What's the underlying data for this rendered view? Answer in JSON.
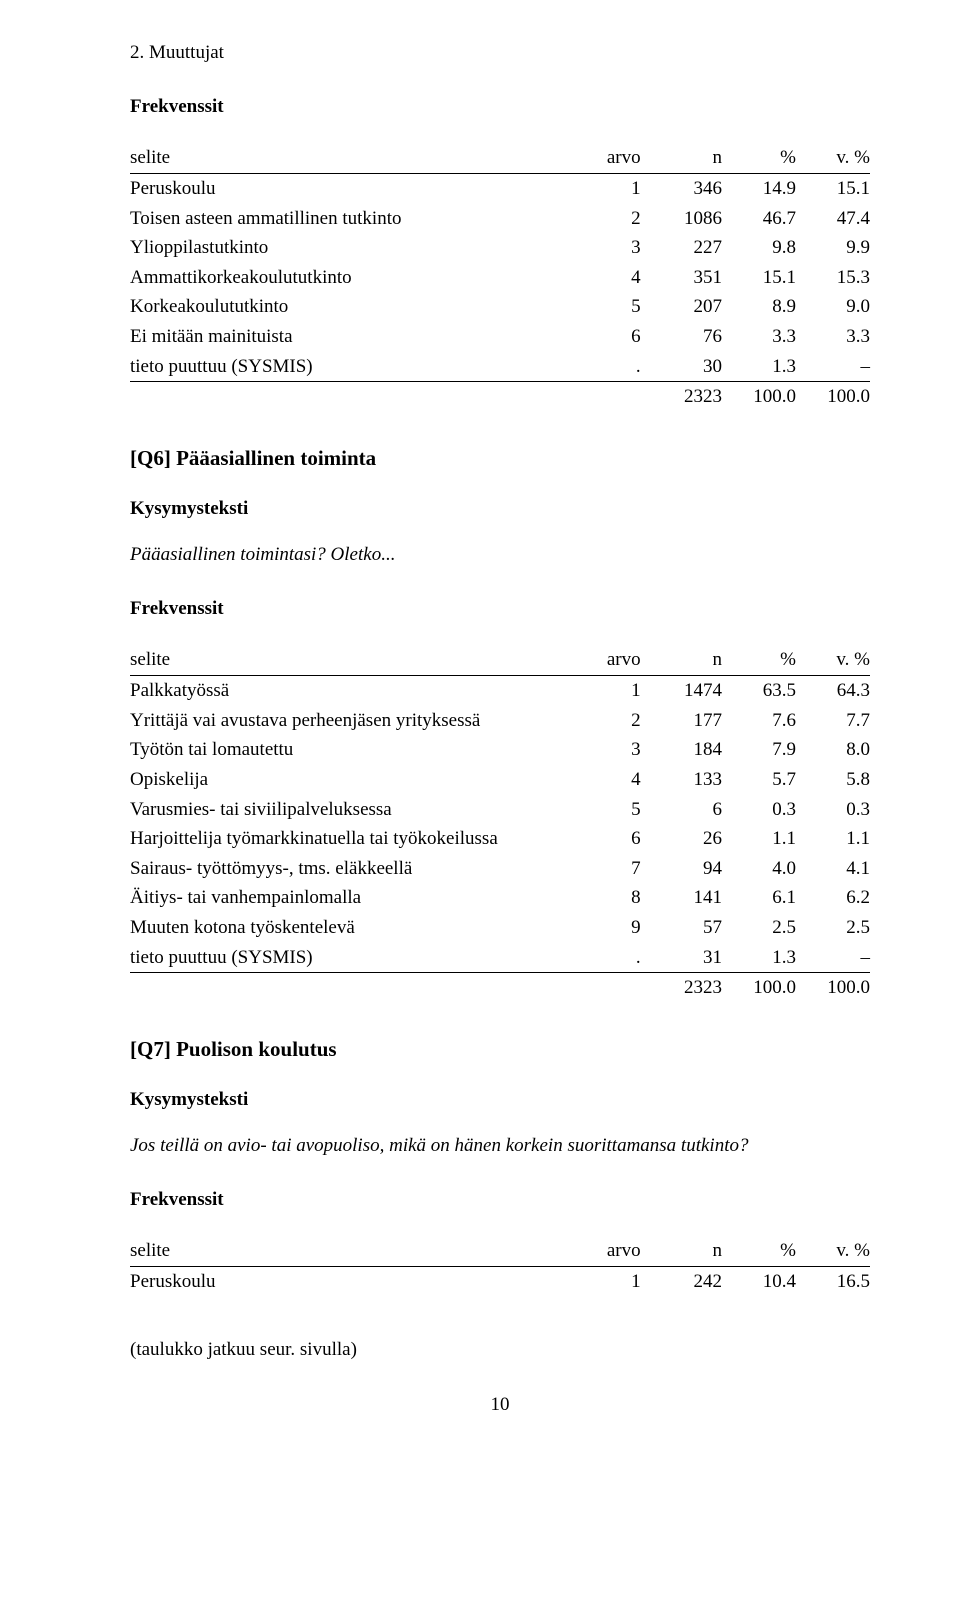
{
  "header": {
    "section": "2. Muuttujat"
  },
  "labels": {
    "frekvenssit": "Frekvenssit",
    "kysymysteksti": "Kysymysteksti"
  },
  "columns": {
    "selite": "selite",
    "arvo": "arvo",
    "n": "n",
    "pct": "%",
    "vpct": "v. %"
  },
  "table1": {
    "rows": [
      {
        "label": "Peruskoulu",
        "arvo": "1",
        "n": "346",
        "pct": "14.9",
        "vpct": "15.1"
      },
      {
        "label": "Toisen asteen ammatillinen tutkinto",
        "arvo": "2",
        "n": "1086",
        "pct": "46.7",
        "vpct": "47.4"
      },
      {
        "label": "Ylioppilastutkinto",
        "arvo": "3",
        "n": "227",
        "pct": "9.8",
        "vpct": "9.9"
      },
      {
        "label": "Ammattikorkeakoulututkinto",
        "arvo": "4",
        "n": "351",
        "pct": "15.1",
        "vpct": "15.3"
      },
      {
        "label": "Korkeakoulututkinto",
        "arvo": "5",
        "n": "207",
        "pct": "8.9",
        "vpct": "9.0"
      },
      {
        "label": "Ei mitään mainituista",
        "arvo": "6",
        "n": "76",
        "pct": "3.3",
        "vpct": "3.3"
      },
      {
        "label": "tieto puuttuu (SYSMIS)",
        "arvo": ".",
        "n": "30",
        "pct": "1.3",
        "vpct": "–"
      }
    ],
    "total": {
      "n": "2323",
      "pct": "100.0",
      "vpct": "100.0"
    }
  },
  "q6": {
    "heading": "[Q6] Pääasiallinen toiminta",
    "text": "Pääasiallinen toimintasi? Oletko..."
  },
  "table2": {
    "rows": [
      {
        "label": "Palkkatyössä",
        "arvo": "1",
        "n": "1474",
        "pct": "63.5",
        "vpct": "64.3"
      },
      {
        "label": "Yrittäjä vai avustava perheenjäsen yrityksessä",
        "arvo": "2",
        "n": "177",
        "pct": "7.6",
        "vpct": "7.7"
      },
      {
        "label": "Työtön tai lomautettu",
        "arvo": "3",
        "n": "184",
        "pct": "7.9",
        "vpct": "8.0"
      },
      {
        "label": "Opiskelija",
        "arvo": "4",
        "n": "133",
        "pct": "5.7",
        "vpct": "5.8"
      },
      {
        "label": "Varusmies- tai siviilipalveluksessa",
        "arvo": "5",
        "n": "6",
        "pct": "0.3",
        "vpct": "0.3"
      },
      {
        "label": "Harjoittelija työmarkkinatuella tai työkokeilussa",
        "arvo": "6",
        "n": "26",
        "pct": "1.1",
        "vpct": "1.1"
      },
      {
        "label": "Sairaus- työttömyys-, tms. eläkkeellä",
        "arvo": "7",
        "n": "94",
        "pct": "4.0",
        "vpct": "4.1"
      },
      {
        "label": "Äitiys- tai vanhempainlomalla",
        "arvo": "8",
        "n": "141",
        "pct": "6.1",
        "vpct": "6.2"
      },
      {
        "label": "Muuten kotona työskentelevä",
        "arvo": "9",
        "n": "57",
        "pct": "2.5",
        "vpct": "2.5"
      },
      {
        "label": "tieto puuttuu (SYSMIS)",
        "arvo": ".",
        "n": "31",
        "pct": "1.3",
        "vpct": "–"
      }
    ],
    "total": {
      "n": "2323",
      "pct": "100.0",
      "vpct": "100.0"
    }
  },
  "q7": {
    "heading": "[Q7] Puolison koulutus",
    "text": "Jos teillä on avio- tai avopuoliso, mikä on hänen korkein suorittamansa tutkinto?"
  },
  "table3": {
    "rows": [
      {
        "label": "Peruskoulu",
        "arvo": "1",
        "n": "242",
        "pct": "10.4",
        "vpct": "16.5"
      }
    ]
  },
  "footer": {
    "cont": "(taulukko jatkuu seur. sivulla)",
    "page": "10"
  }
}
